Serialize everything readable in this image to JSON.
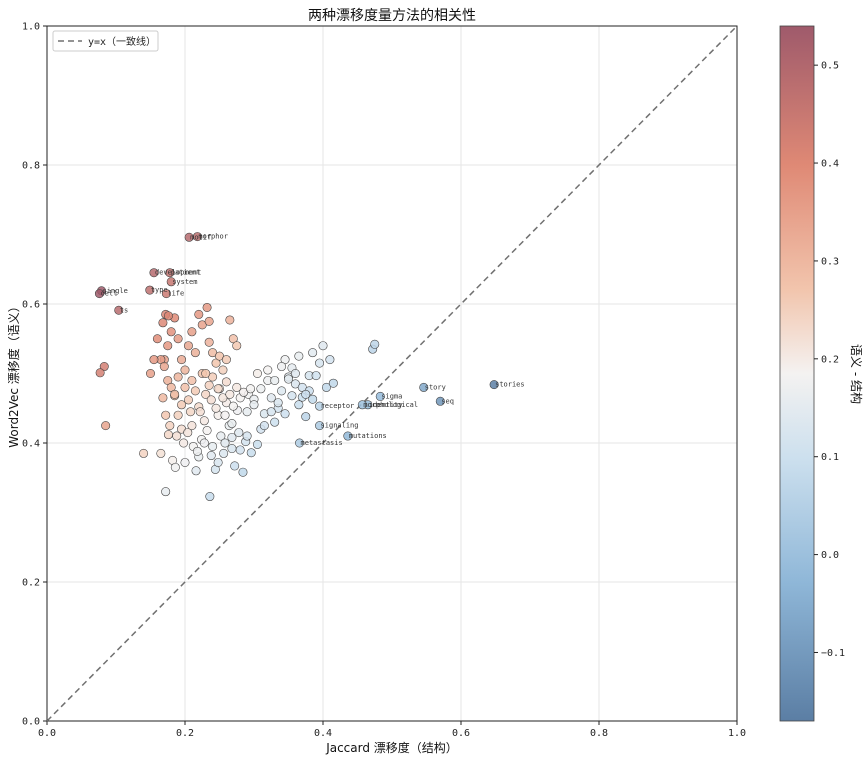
{
  "chart_data": {
    "type": "scatter",
    "title": "两种漂移度量方法的相关性",
    "xlabel": "Jaccard 漂移度（结构）",
    "ylabel": "Word2Vec 漂移度（语义）",
    "colorbar_label": "语义 - 结构",
    "xlim": [
      0,
      1
    ],
    "ylim": [
      0,
      1
    ],
    "xticks": [
      "0.0",
      "0.2",
      "0.4",
      "0.6",
      "0.8",
      "1.0"
    ],
    "yticks": [
      "0.0",
      "0.2",
      "0.4",
      "0.6",
      "0.8",
      "1.0"
    ],
    "colorbar_range": [
      -0.17,
      0.54
    ],
    "colorbar_ticks": [
      "−0.1",
      "0.0",
      "0.1",
      "0.2",
      "0.3",
      "0.4",
      "0.5"
    ],
    "grid": true,
    "legend_position": "top-left",
    "legend": [
      "y=x（一致线）"
    ],
    "labeled_points": [
      {
        "label": "motif",
        "x": 0.206,
        "y": 0.696
      },
      {
        "label": "morphor",
        "x": 0.218,
        "y": 0.697
      },
      {
        "label": "development",
        "x": 0.155,
        "y": 0.645
      },
      {
        "label": "patient",
        "x": 0.178,
        "y": 0.645
      },
      {
        "label": "system",
        "x": 0.18,
        "y": 0.632
      },
      {
        "label": "type",
        "x": 0.149,
        "y": 0.62
      },
      {
        "label": "life",
        "x": 0.173,
        "y": 0.615
      },
      {
        "label": "single",
        "x": 0.079,
        "y": 0.619
      },
      {
        "label": "cell",
        "x": 0.076,
        "y": 0.615
      },
      {
        "label": "ts",
        "x": 0.104,
        "y": 0.591
      },
      {
        "label": "story",
        "x": 0.546,
        "y": 0.48
      },
      {
        "label": "stories",
        "x": 0.648,
        "y": 0.484
      },
      {
        "label": "seq",
        "x": 0.57,
        "y": 0.46
      },
      {
        "label": "sigma",
        "x": 0.483,
        "y": 0.467
      },
      {
        "label": "identity",
        "x": 0.465,
        "y": 0.455
      },
      {
        "label": "morphological",
        "x": 0.457,
        "y": 0.455
      },
      {
        "label": "receptor",
        "x": 0.395,
        "y": 0.453
      },
      {
        "label": "signaling",
        "x": 0.395,
        "y": 0.425
      },
      {
        "label": "mutations",
        "x": 0.436,
        "y": 0.41
      },
      {
        "label": "metastasis",
        "x": 0.366,
        "y": 0.4
      }
    ],
    "points": [
      [
        0.083,
        0.51
      ],
      [
        0.077,
        0.501
      ],
      [
        0.085,
        0.425
      ],
      [
        0.14,
        0.385
      ],
      [
        0.165,
        0.385
      ],
      [
        0.172,
        0.33
      ],
      [
        0.176,
        0.412
      ],
      [
        0.182,
        0.375
      ],
      [
        0.186,
        0.365
      ],
      [
        0.19,
        0.44
      ],
      [
        0.195,
        0.42
      ],
      [
        0.2,
        0.372
      ],
      [
        0.204,
        0.415
      ],
      [
        0.208,
        0.445
      ],
      [
        0.212,
        0.395
      ],
      [
        0.216,
        0.36
      ],
      [
        0.22,
        0.38
      ],
      [
        0.224,
        0.405
      ],
      [
        0.228,
        0.432
      ],
      [
        0.232,
        0.418
      ],
      [
        0.236,
        0.323
      ],
      [
        0.24,
        0.395
      ],
      [
        0.244,
        0.362
      ],
      [
        0.248,
        0.44
      ],
      [
        0.252,
        0.41
      ],
      [
        0.256,
        0.385
      ],
      [
        0.26,
        0.458
      ],
      [
        0.264,
        0.425
      ],
      [
        0.268,
        0.408
      ],
      [
        0.272,
        0.367
      ],
      [
        0.276,
        0.447
      ],
      [
        0.28,
        0.39
      ],
      [
        0.284,
        0.358
      ],
      [
        0.288,
        0.402
      ],
      [
        0.292,
        0.47
      ],
      [
        0.296,
        0.386
      ],
      [
        0.3,
        0.463
      ],
      [
        0.305,
        0.5
      ],
      [
        0.31,
        0.42
      ],
      [
        0.315,
        0.442
      ],
      [
        0.32,
        0.49
      ],
      [
        0.325,
        0.465
      ],
      [
        0.33,
        0.43
      ],
      [
        0.335,
        0.45
      ],
      [
        0.34,
        0.475
      ],
      [
        0.345,
        0.52
      ],
      [
        0.35,
        0.495
      ],
      [
        0.355,
        0.508
      ],
      [
        0.36,
        0.485
      ],
      [
        0.365,
        0.525
      ],
      [
        0.37,
        0.466
      ],
      [
        0.375,
        0.438
      ],
      [
        0.38,
        0.497
      ],
      [
        0.385,
        0.53
      ],
      [
        0.39,
        0.497
      ],
      [
        0.395,
        0.515
      ],
      [
        0.4,
        0.54
      ],
      [
        0.405,
        0.48
      ],
      [
        0.41,
        0.52
      ],
      [
        0.415,
        0.486
      ],
      [
        0.472,
        0.535
      ],
      [
        0.475,
        0.542
      ],
      [
        0.185,
        0.468
      ],
      [
        0.19,
        0.495
      ],
      [
        0.195,
        0.455
      ],
      [
        0.2,
        0.48
      ],
      [
        0.205,
        0.462
      ],
      [
        0.21,
        0.49
      ],
      [
        0.215,
        0.475
      ],
      [
        0.22,
        0.452
      ],
      [
        0.225,
        0.5
      ],
      [
        0.23,
        0.47
      ],
      [
        0.235,
        0.483
      ],
      [
        0.24,
        0.495
      ],
      [
        0.245,
        0.45
      ],
      [
        0.25,
        0.478
      ],
      [
        0.255,
        0.465
      ],
      [
        0.26,
        0.488
      ],
      [
        0.265,
        0.47
      ],
      [
        0.27,
        0.453
      ],
      [
        0.275,
        0.48
      ],
      [
        0.28,
        0.465
      ],
      [
        0.285,
        0.473
      ],
      [
        0.29,
        0.445
      ],
      [
        0.295,
        0.478
      ],
      [
        0.3,
        0.455
      ],
      [
        0.31,
        0.478
      ],
      [
        0.32,
        0.505
      ],
      [
        0.33,
        0.49
      ],
      [
        0.34,
        0.51
      ],
      [
        0.35,
        0.492
      ],
      [
        0.36,
        0.5
      ],
      [
        0.37,
        0.48
      ],
      [
        0.38,
        0.475
      ],
      [
        0.18,
        0.56
      ],
      [
        0.185,
        0.58
      ],
      [
        0.175,
        0.54
      ],
      [
        0.17,
        0.52
      ],
      [
        0.19,
        0.55
      ],
      [
        0.195,
        0.52
      ],
      [
        0.2,
        0.505
      ],
      [
        0.205,
        0.54
      ],
      [
        0.21,
        0.56
      ],
      [
        0.215,
        0.53
      ],
      [
        0.22,
        0.585
      ],
      [
        0.225,
        0.57
      ],
      [
        0.23,
        0.5
      ],
      [
        0.235,
        0.545
      ],
      [
        0.24,
        0.53
      ],
      [
        0.245,
        0.515
      ],
      [
        0.25,
        0.525
      ],
      [
        0.255,
        0.505
      ],
      [
        0.26,
        0.52
      ],
      [
        0.265,
        0.577
      ],
      [
        0.27,
        0.55
      ],
      [
        0.275,
        0.54
      ],
      [
        0.16,
        0.55
      ],
      [
        0.165,
        0.52
      ],
      [
        0.17,
        0.51
      ],
      [
        0.175,
        0.49
      ],
      [
        0.18,
        0.48
      ],
      [
        0.185,
        0.47
      ],
      [
        0.232,
        0.595
      ],
      [
        0.235,
        0.575
      ],
      [
        0.168,
        0.573
      ],
      [
        0.172,
        0.585
      ],
      [
        0.176,
        0.583
      ],
      [
        0.155,
        0.52
      ],
      [
        0.15,
        0.5
      ],
      [
        0.168,
        0.465
      ],
      [
        0.172,
        0.44
      ],
      [
        0.178,
        0.425
      ],
      [
        0.188,
        0.41
      ],
      [
        0.198,
        0.4
      ],
      [
        0.21,
        0.425
      ],
      [
        0.222,
        0.445
      ],
      [
        0.238,
        0.462
      ],
      [
        0.248,
        0.478
      ],
      [
        0.258,
        0.44
      ],
      [
        0.268,
        0.428
      ],
      [
        0.278,
        0.415
      ],
      [
        0.228,
        0.4
      ],
      [
        0.238,
        0.382
      ],
      [
        0.248,
        0.372
      ],
      [
        0.218,
        0.388
      ],
      [
        0.258,
        0.4
      ],
      [
        0.268,
        0.392
      ],
      [
        0.29,
        0.41
      ],
      [
        0.305,
        0.398
      ],
      [
        0.315,
        0.425
      ],
      [
        0.325,
        0.445
      ],
      [
        0.335,
        0.458
      ],
      [
        0.345,
        0.442
      ],
      [
        0.355,
        0.468
      ],
      [
        0.365,
        0.455
      ],
      [
        0.375,
        0.47
      ],
      [
        0.385,
        0.463
      ]
    ]
  }
}
